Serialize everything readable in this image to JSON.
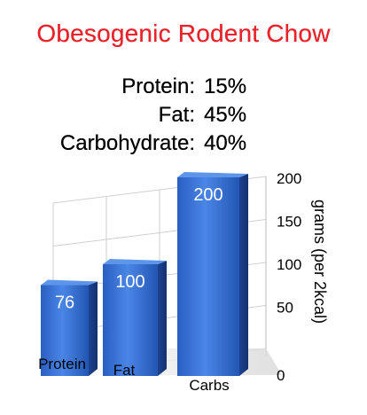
{
  "title": "Obesogenic Rodent Chow",
  "macros": [
    {
      "name": "Protein:",
      "value": "15%"
    },
    {
      "name": "Fat:",
      "value": "45%"
    },
    {
      "name": "Carbohydrate:",
      "value": "40%"
    }
  ],
  "colors": {
    "title": "#e8232b",
    "bar": "#2f6bd0",
    "bar_dark": "#1b3f8a",
    "grid": "#cfcfcf"
  },
  "chart_data": {
    "type": "bar",
    "title": "",
    "categories": [
      "Protein",
      "Fat",
      "Carbs"
    ],
    "values": [
      76,
      100,
      200
    ],
    "value_labels": [
      "76",
      "100",
      "200"
    ],
    "xlabel": "",
    "ylabel": "grams (per 2kcal)",
    "ylim": [
      0,
      200
    ],
    "yticks": [
      0,
      50,
      100,
      150,
      200
    ],
    "grid": true,
    "style": "3d"
  }
}
